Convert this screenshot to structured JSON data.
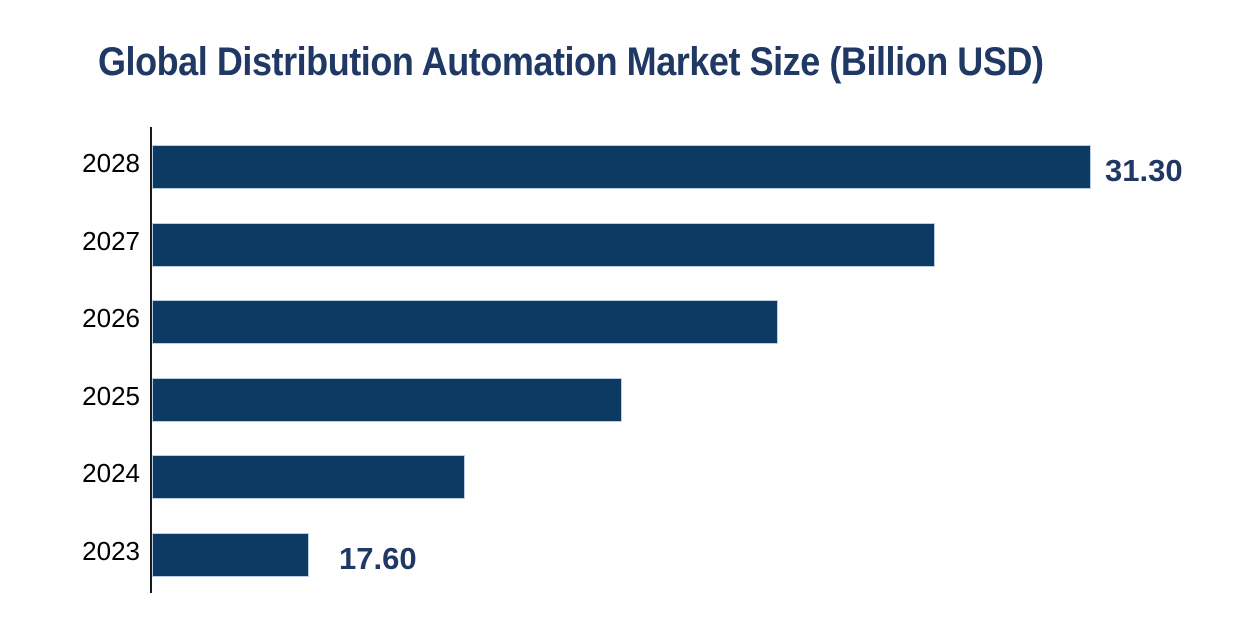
{
  "colors": {
    "background": "#ffffff",
    "title": "#1f3864",
    "data_label": "#1f3864",
    "year_label": "#000000",
    "bar_fill": "#0c3a63",
    "bar_border": "#b9cfe6",
    "axis": "#1a1a1a"
  },
  "chart_data": {
    "type": "bar",
    "orientation": "horizontal",
    "title": "Global Distribution Automation Market Size (Billion USD)",
    "units": "Billion USD",
    "categories": [
      "2028",
      "2027",
      "2026",
      "2025",
      "2024",
      "2023"
    ],
    "values": [
      31.3,
      28.56,
      25.82,
      23.08,
      20.34,
      17.6
    ],
    "data_labels": [
      "31.30",
      "",
      "",
      "",
      "",
      "17.60"
    ],
    "value_axis": {
      "min": 14.85,
      "max": 31.3,
      "visible": false
    },
    "category_axis": {
      "side": "left",
      "visible": true
    },
    "grid": false,
    "legend": false
  }
}
